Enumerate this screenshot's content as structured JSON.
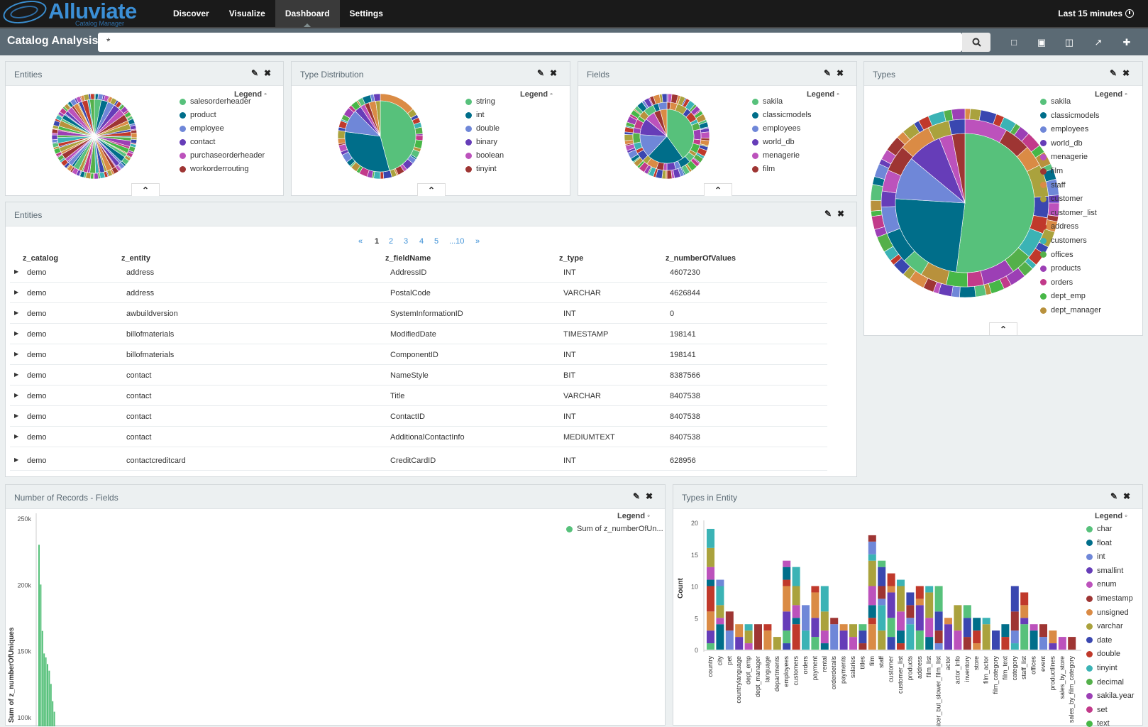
{
  "brand": {
    "name": "Alluviate",
    "subtitle": "Catalog Manager"
  },
  "nav": {
    "items": [
      "Discover",
      "Visualize",
      "Dashboard",
      "Settings"
    ],
    "active": "Dashboard"
  },
  "timepicker": {
    "label": "Last 15 minutes"
  },
  "appname": "Catalog Analysis",
  "search": {
    "value": "*"
  },
  "toolbar_icons": [
    "new-dashboard-icon",
    "save-icon",
    "open-icon",
    "share-icon",
    "add-icon"
  ],
  "legend_label": "Legend",
  "panels": {
    "entities_pie": {
      "title": "Entities",
      "legend": [
        {
          "label": "salesorderheader",
          "color": "#57c17b"
        },
        {
          "label": "product",
          "color": "#006e8a"
        },
        {
          "label": "employee",
          "color": "#6f87d8"
        },
        {
          "label": "contact",
          "color": "#663db8"
        },
        {
          "label": "purchaseorderheader",
          "color": "#bc52bc"
        },
        {
          "label": "workorderrouting",
          "color": "#9e3533"
        }
      ]
    },
    "type_distribution": {
      "title": "Type Distribution",
      "legend": [
        {
          "label": "string",
          "color": "#57c17b"
        },
        {
          "label": "int",
          "color": "#006e8a"
        },
        {
          "label": "double",
          "color": "#6f87d8"
        },
        {
          "label": "binary",
          "color": "#663db8"
        },
        {
          "label": "boolean",
          "color": "#bc52bc"
        },
        {
          "label": "tinyint",
          "color": "#9e3533"
        }
      ]
    },
    "fields_pie": {
      "title": "Fields",
      "legend": [
        {
          "label": "sakila",
          "color": "#57c17b"
        },
        {
          "label": "classicmodels",
          "color": "#006e8a"
        },
        {
          "label": "employees",
          "color": "#6f87d8"
        },
        {
          "label": "world_db",
          "color": "#663db8"
        },
        {
          "label": "menagerie",
          "color": "#bc52bc"
        },
        {
          "label": "film",
          "color": "#9e3533"
        }
      ]
    },
    "types_pie": {
      "title": "Types",
      "legend": [
        {
          "label": "sakila",
          "color": "#57c17b"
        },
        {
          "label": "classicmodels",
          "color": "#006e8a"
        },
        {
          "label": "employees",
          "color": "#6f87d8"
        },
        {
          "label": "world_db",
          "color": "#663db8"
        },
        {
          "label": "menagerie",
          "color": "#bc52bc"
        },
        {
          "label": "film",
          "color": "#9e3533"
        },
        {
          "label": "staff",
          "color": "#da8b45"
        },
        {
          "label": "customer",
          "color": "#aaa23d"
        },
        {
          "label": "customer_list",
          "color": "#3a47b0"
        },
        {
          "label": "address",
          "color": "#c0392b"
        },
        {
          "label": "customers",
          "color": "#3bb3b5"
        },
        {
          "label": "offices",
          "color": "#54b04a"
        },
        {
          "label": "products",
          "color": "#9c3fb5"
        },
        {
          "label": "orders",
          "color": "#c23a8a"
        },
        {
          "label": "dept_emp",
          "color": "#47b747"
        },
        {
          "label": "dept_manager",
          "color": "#b8913c"
        }
      ]
    },
    "entities_table": {
      "title": "Entities",
      "pager": [
        "«",
        "1",
        "2",
        "3",
        "4",
        "5",
        "...10",
        "»"
      ],
      "columns": [
        "z_catalog",
        "z_entity",
        "z_fieldName",
        "z_type",
        "z_numberOfValues"
      ],
      "rows": [
        [
          "demo",
          "address",
          "AddressID",
          "INT",
          "4607230"
        ],
        [
          "demo",
          "address",
          "PostalCode",
          "VARCHAR",
          "4626844"
        ],
        [
          "demo",
          "awbuildversion",
          "SystemInformationID",
          "INT",
          "0"
        ],
        [
          "demo",
          "billofmaterials",
          "ModifiedDate",
          "TIMESTAMP",
          "198141"
        ],
        [
          "demo",
          "billofmaterials",
          "ComponentID",
          "INT",
          "198141"
        ],
        [
          "demo",
          "contact",
          "NameStyle",
          "BIT",
          "8387566"
        ],
        [
          "demo",
          "contact",
          "Title",
          "VARCHAR",
          "8407538"
        ],
        [
          "demo",
          "contact",
          "ContactID",
          "INT",
          "8407538"
        ],
        [
          "demo",
          "contact",
          "AdditionalContactInfo",
          "MEDIUMTEXT",
          "8407538"
        ],
        [
          "demo",
          "contactcreditcard",
          "CreditCardID",
          "INT",
          "628956"
        ]
      ]
    },
    "records_fields": {
      "title": "Number of Records - Fields",
      "legend": [
        {
          "label": "Sum of z_numberOfUn...",
          "color": "#57c17b"
        }
      ]
    },
    "types_in_entity": {
      "title": "Types in Entity",
      "legend": [
        {
          "label": "char",
          "color": "#57c17b"
        },
        {
          "label": "float",
          "color": "#006e8a"
        },
        {
          "label": "int",
          "color": "#6f87d8"
        },
        {
          "label": "smallint",
          "color": "#663db8"
        },
        {
          "label": "enum",
          "color": "#bc52bc"
        },
        {
          "label": "timestamp",
          "color": "#9e3533"
        },
        {
          "label": "unsigned",
          "color": "#da8b45"
        },
        {
          "label": "varchar",
          "color": "#aaa23d"
        },
        {
          "label": "date",
          "color": "#3a47b0"
        },
        {
          "label": "double",
          "color": "#c0392b"
        },
        {
          "label": "tinyint",
          "color": "#3bb3b5"
        },
        {
          "label": "decimal",
          "color": "#54b04a"
        },
        {
          "label": "sakila.year",
          "color": "#9c3fb5"
        },
        {
          "label": "set",
          "color": "#c23a8a"
        },
        {
          "label": "text",
          "color": "#47b747"
        }
      ]
    }
  },
  "chart_data": [
    {
      "type": "bar",
      "ylabel": "Sum of z_numberOfUniques",
      "yticks": [
        "250k",
        "200k",
        "150k",
        "100k"
      ],
      "ylim": [
        100000,
        250000
      ],
      "series": [
        {
          "name": "Sum of z_numberOfUn...",
          "values": [
            230000,
            200000,
            165000,
            148000,
            145000,
            140000,
            135000,
            125000,
            112000,
            104000
          ]
        }
      ]
    },
    {
      "type": "bar",
      "ylabel": "Count",
      "yticks": [
        "20",
        "15",
        "10",
        "5",
        "0"
      ],
      "ylim": [
        0,
        20
      ],
      "categories": [
        "country",
        "city",
        "pet",
        "countrylanguage",
        "dept_emp",
        "dept_manager",
        "language",
        "departments",
        "employees",
        "customers",
        "orders",
        "payment",
        "rental",
        "orderdetails",
        "payments",
        "salaries",
        "titles",
        "film",
        "staff",
        "customer",
        "customer_list",
        "products",
        "address",
        "film_list",
        "nicer_but_slower_film_list",
        "actor",
        "actor_info",
        "inventory",
        "store",
        "film_actor",
        "film_category",
        "film_text",
        "category",
        "staff_list",
        "offices",
        "event",
        "productlines",
        "sales_by_store",
        "sales_by_film_category"
      ],
      "stacked": true,
      "totals": [
        19,
        11,
        6,
        4,
        4,
        4,
        4,
        2,
        14,
        13,
        7,
        10,
        10,
        5,
        4,
        4,
        4,
        18,
        14,
        12,
        11,
        9,
        10,
        10,
        10,
        5,
        7,
        7,
        5,
        5,
        3,
        4,
        10,
        9,
        4,
        4,
        3,
        2,
        2
      ],
      "stack_colors": [
        "#57c17b",
        "#006e8a",
        "#6f87d8",
        "#663db8",
        "#bc52bc",
        "#9e3533",
        "#da8b45",
        "#aaa23d",
        "#3a47b0",
        "#c0392b",
        "#3bb3b5"
      ]
    }
  ]
}
